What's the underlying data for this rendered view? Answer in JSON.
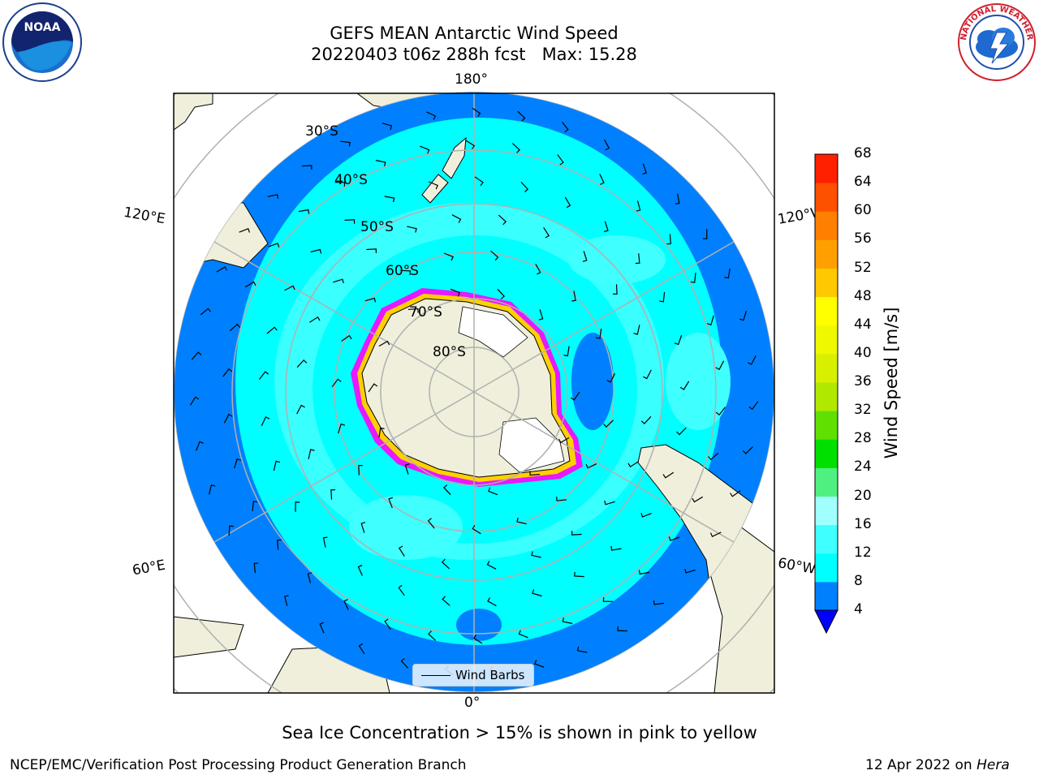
{
  "title_line1": "GEFS MEAN Antarctic Wind Speed",
  "title_line2": "20220403 t06z 288h fcst   Max: 15.28",
  "caption": "Sea Ice Concentration > 15% is shown in pink to yellow",
  "footer_left": "NCEP/EMC/Verification Post Processing Product Generation Branch",
  "footer_date": "12 Apr 2022 on ",
  "footer_host": "Hera",
  "legend_label": "Wind Barbs",
  "colorbar": {
    "label": "Wind Speed [m/s]",
    "ticks": [
      "4",
      "8",
      "12",
      "16",
      "20",
      "24",
      "28",
      "32",
      "36",
      "40",
      "44",
      "48",
      "52",
      "56",
      "60",
      "64",
      "68"
    ],
    "colors": [
      "#0080ff",
      "#00ffff",
      "#40ffff",
      "#a0ffff",
      "#50f080",
      "#00e000",
      "#60e000",
      "#b0e800",
      "#d8f000",
      "#f0f800",
      "#ffff00",
      "#ffc800",
      "#ffa000",
      "#ff8000",
      "#ff5000",
      "#ff2000",
      "#ff0000"
    ],
    "extend_color": "#0000ff"
  },
  "lon_labels": {
    "top": "180°",
    "bottom": "0°",
    "left_upper": "120°E",
    "left_lower": "60°E",
    "right_upper": "120°W",
    "right_lower": "60°W"
  },
  "lat_labels": [
    "30°S",
    "40°S",
    "50°S",
    "60°S",
    "70°S",
    "80°S"
  ],
  "logos": {
    "left": "NOAA",
    "right": "NATIONAL WEATHER SERVICE"
  }
}
